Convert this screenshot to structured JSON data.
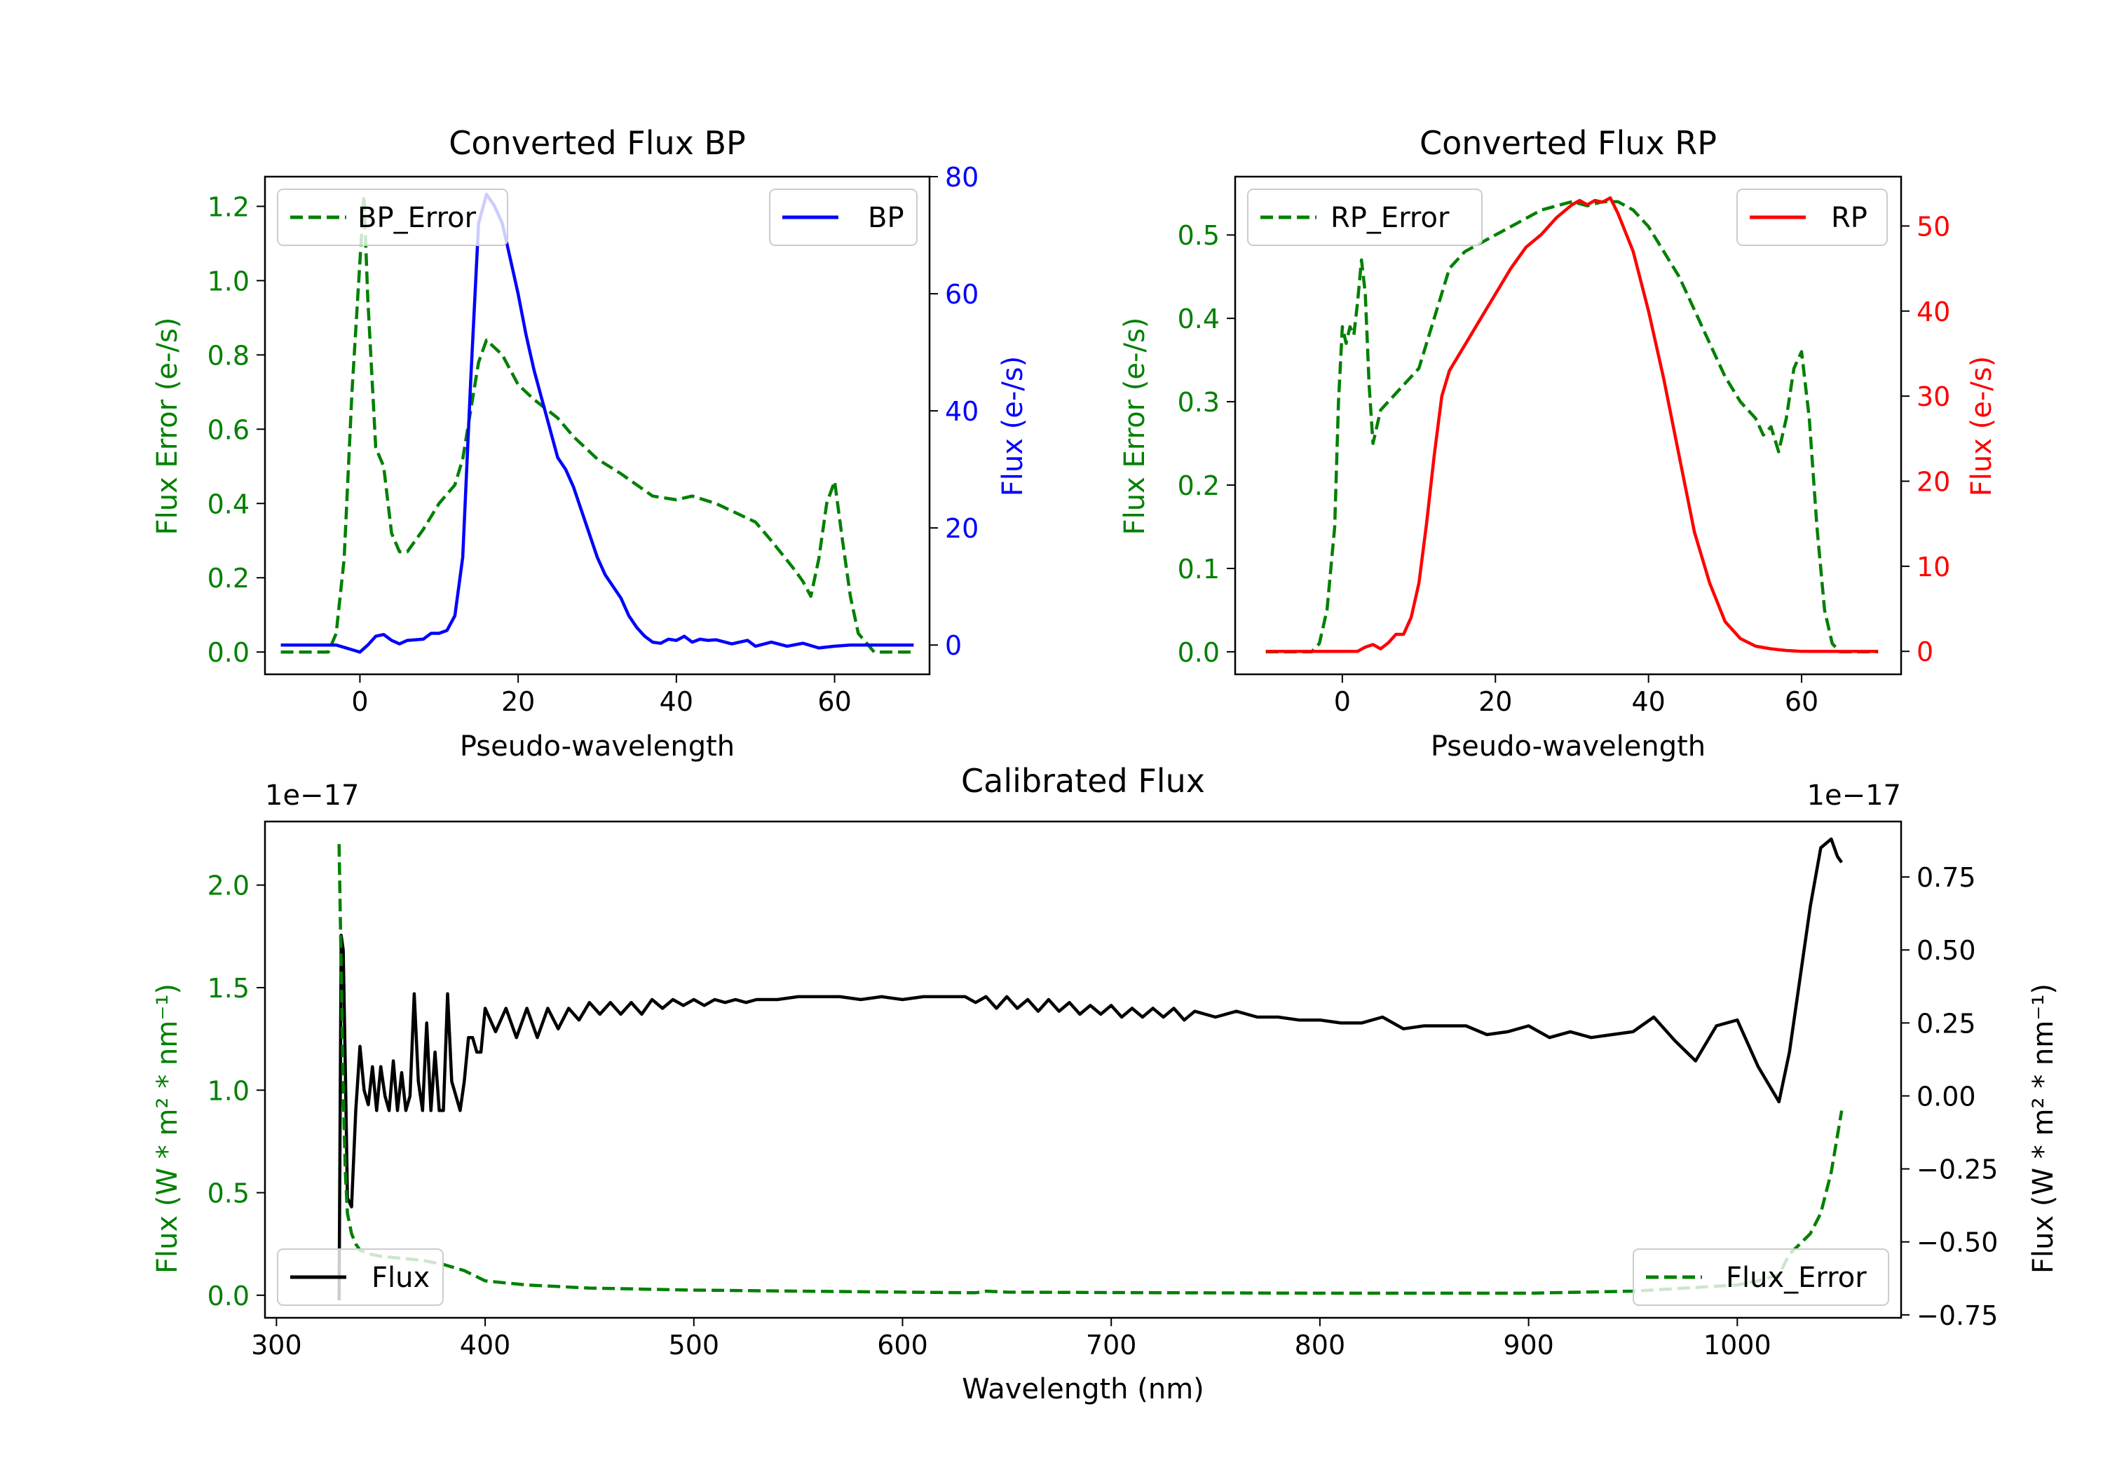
{
  "chart_data": [
    {
      "id": "bp",
      "type": "line",
      "title": "Converted Flux BP",
      "xlabel": "Pseudo-wavelength",
      "ylabel": "Flux Error (e-/s)",
      "ylabel_right": "Flux (e-/s)",
      "xlim": [
        -12,
        72
      ],
      "ylim": [
        -0.06,
        1.28
      ],
      "ylim_right": [
        -5,
        80
      ],
      "xticks": [
        0,
        20,
        40,
        60
      ],
      "yticks": [
        0.0,
        0.2,
        0.4,
        0.6,
        0.8,
        1.0,
        1.2
      ],
      "yticks_right": [
        0,
        20,
        40,
        60,
        80
      ],
      "grid": false,
      "legend_left": "upper-left",
      "legend_right": "upper-right",
      "colors": {
        "error": "#008000",
        "flux": "#0000ff"
      },
      "series": [
        {
          "name": "BP_Error",
          "axis": "left",
          "style": "dashed",
          "color": "#008000",
          "x": [
            -10,
            -4,
            -3,
            -2,
            -1,
            0,
            0.5,
            1,
            2,
            3,
            4,
            5,
            6,
            8,
            10,
            12,
            13,
            14,
            15,
            16,
            18,
            20,
            22,
            25,
            27,
            30,
            33,
            35,
            37,
            40,
            42,
            45,
            47,
            50,
            52,
            55,
            56,
            57,
            58,
            59,
            60,
            61,
            62,
            63,
            65,
            70
          ],
          "y": [
            0.0,
            0.0,
            0.05,
            0.25,
            0.7,
            1.05,
            1.23,
            0.95,
            0.55,
            0.5,
            0.32,
            0.27,
            0.27,
            0.33,
            0.4,
            0.45,
            0.52,
            0.65,
            0.78,
            0.84,
            0.8,
            0.72,
            0.68,
            0.63,
            0.58,
            0.52,
            0.48,
            0.45,
            0.42,
            0.41,
            0.42,
            0.4,
            0.38,
            0.35,
            0.3,
            0.22,
            0.19,
            0.15,
            0.25,
            0.4,
            0.46,
            0.3,
            0.15,
            0.05,
            0.0,
            0.0
          ]
        },
        {
          "name": "BP",
          "axis": "right",
          "style": "solid",
          "color": "#0000ff",
          "x": [
            -10,
            -3,
            -1,
            0,
            1,
            2,
            3,
            4,
            5,
            6,
            8,
            9,
            10,
            11,
            12,
            13,
            14,
            15,
            16,
            17,
            18,
            19,
            20,
            21,
            22,
            23,
            24,
            25,
            26,
            27,
            28,
            29,
            30,
            31,
            32,
            33,
            34,
            35,
            36,
            37,
            38,
            39,
            40,
            41,
            42,
            43,
            44,
            45,
            47,
            49,
            50,
            52,
            54,
            56,
            58,
            60,
            62,
            65,
            70
          ],
          "y": [
            0,
            0,
            -0.8,
            -1.2,
            0,
            1.5,
            1.8,
            0.8,
            0.2,
            0.8,
            1,
            2,
            2,
            2.5,
            5,
            15,
            45,
            72,
            77,
            75,
            72,
            66,
            60,
            53,
            47,
            42,
            37,
            32,
            30,
            27,
            23,
            19,
            15,
            12,
            10,
            8,
            5,
            3,
            1.5,
            0.5,
            0.3,
            1,
            0.8,
            1.5,
            0.5,
            1,
            0.8,
            0.9,
            0.2,
            0.8,
            -0.2,
            0.5,
            -0.2,
            0.3,
            -0.5,
            -0.2,
            0,
            0,
            0
          ]
        }
      ]
    },
    {
      "id": "rp",
      "type": "line",
      "title": "Converted Flux RP",
      "xlabel": "Pseudo-wavelength",
      "ylabel": "Flux Error (e-/s)",
      "ylabel_right": "Flux (e-/s)",
      "xlim": [
        -14,
        73
      ],
      "ylim": [
        -0.027,
        0.57
      ],
      "ylim_right": [
        -2.7,
        55.8
      ],
      "xticks": [
        0,
        20,
        40,
        60
      ],
      "yticks": [
        0.0,
        0.1,
        0.2,
        0.3,
        0.4,
        0.5
      ],
      "yticks_right": [
        0,
        10,
        20,
        30,
        40,
        50
      ],
      "grid": false,
      "legend_left": "upper-left",
      "legend_right": "upper-right",
      "colors": {
        "error": "#008000",
        "flux": "#ff0000"
      },
      "series": [
        {
          "name": "RP_Error",
          "axis": "left",
          "style": "dashed",
          "color": "#008000",
          "x": [
            -10,
            -4,
            -3,
            -2,
            -1,
            -0.5,
            0,
            0.5,
            1,
            1.5,
            2,
            2.5,
            3,
            3.5,
            4,
            5,
            6,
            8,
            10,
            12,
            14,
            16,
            18,
            20,
            22,
            24,
            26,
            28,
            30,
            32,
            34,
            36,
            38,
            40,
            42,
            44,
            46,
            48,
            50,
            52,
            54,
            55,
            56,
            57,
            58,
            59,
            60,
            61,
            62,
            63,
            64,
            65,
            68,
            70
          ],
          "y": [
            0.0,
            0.0,
            0.01,
            0.05,
            0.15,
            0.3,
            0.39,
            0.37,
            0.39,
            0.38,
            0.42,
            0.47,
            0.43,
            0.32,
            0.25,
            0.29,
            0.3,
            0.32,
            0.34,
            0.4,
            0.46,
            0.48,
            0.49,
            0.5,
            0.51,
            0.52,
            0.53,
            0.535,
            0.54,
            0.535,
            0.54,
            0.54,
            0.53,
            0.51,
            0.48,
            0.45,
            0.41,
            0.37,
            0.33,
            0.3,
            0.28,
            0.26,
            0.27,
            0.24,
            0.28,
            0.34,
            0.36,
            0.28,
            0.15,
            0.05,
            0.01,
            0.0,
            0.0,
            0.0
          ]
        },
        {
          "name": "RP",
          "axis": "right",
          "style": "solid",
          "color": "#ff0000",
          "x": [
            -10,
            -2,
            0,
            2,
            3,
            4,
            5,
            6,
            7,
            8,
            9,
            10,
            11,
            12,
            13,
            14,
            16,
            18,
            20,
            22,
            24,
            26,
            28,
            30,
            31,
            32,
            33,
            34,
            35,
            36,
            38,
            40,
            42,
            44,
            46,
            48,
            50,
            52,
            54,
            56,
            58,
            60,
            62,
            65,
            70
          ],
          "y": [
            0,
            0,
            0,
            0,
            0.5,
            0.8,
            0.3,
            1,
            2,
            2,
            4,
            8,
            15,
            23,
            30,
            33,
            36,
            39,
            42,
            45,
            47.5,
            49,
            51,
            52.5,
            53,
            52.5,
            53,
            52.8,
            53.3,
            51.5,
            47,
            40,
            32,
            23,
            14,
            8,
            3.5,
            1.5,
            0.6,
            0.3,
            0.1,
            0,
            0,
            0,
            0
          ]
        }
      ]
    },
    {
      "id": "cal",
      "type": "line",
      "title": "Calibrated Flux",
      "xlabel": "Wavelength (nm)",
      "ylabel": "Flux (W * m² * nm⁻¹)",
      "ylabel_right": "Flux (W * m² * nm⁻¹)",
      "offset_left": "1e−17",
      "offset_right": "1e−17",
      "xlim": [
        294.5,
        1078.5
      ],
      "ylim": [
        -0.11,
        2.31
      ],
      "ylim_right": [
        -0.76,
        0.94
      ],
      "xticks": [
        300,
        400,
        500,
        600,
        700,
        800,
        900,
        1000
      ],
      "yticks": [
        0.0,
        0.5,
        1.0,
        1.5,
        2.0
      ],
      "yticks_right": [
        -0.75,
        -0.5,
        -0.25,
        0.0,
        0.25,
        0.5,
        0.75
      ],
      "ytick_labels_right": [
        "−0.75",
        "−0.50",
        "−0.25",
        "0.00",
        "0.25",
        "0.50",
        "0.75"
      ],
      "grid": false,
      "legend_left": "lower-left",
      "legend_right": "lower-right",
      "colors": {
        "error": "#008000",
        "flux": "#000000"
      },
      "series": [
        {
          "name": "Flux",
          "axis": "right",
          "style": "solid",
          "color": "#000000",
          "x": [
            330,
            331,
            332,
            333,
            334,
            336,
            338,
            340,
            342,
            344,
            346,
            348,
            350,
            352,
            354,
            356,
            358,
            360,
            362,
            364,
            366,
            368,
            370,
            372,
            374,
            376,
            378,
            380,
            382,
            384,
            386,
            388,
            390,
            392,
            394,
            396,
            398,
            400,
            405,
            410,
            415,
            420,
            425,
            430,
            435,
            440,
            445,
            450,
            455,
            460,
            465,
            470,
            475,
            480,
            485,
            490,
            495,
            500,
            505,
            510,
            515,
            520,
            525,
            530,
            540,
            550,
            560,
            570,
            580,
            590,
            600,
            610,
            620,
            630,
            635,
            640,
            645,
            650,
            655,
            660,
            665,
            670,
            675,
            680,
            685,
            690,
            695,
            700,
            705,
            710,
            715,
            720,
            725,
            730,
            735,
            740,
            750,
            760,
            770,
            780,
            790,
            800,
            810,
            820,
            830,
            840,
            850,
            860,
            870,
            880,
            890,
            900,
            910,
            920,
            930,
            940,
            950,
            960,
            970,
            980,
            990,
            1000,
            1010,
            1020,
            1025,
            1030,
            1035,
            1040,
            1045,
            1048,
            1050
          ],
          "y": [
            -0.7,
            0.55,
            0.5,
            0.1,
            -0.35,
            -0.38,
            -0.05,
            0.17,
            0.02,
            -0.03,
            0.1,
            -0.05,
            0.1,
            0.0,
            -0.05,
            0.12,
            -0.05,
            0.08,
            -0.05,
            0.0,
            0.35,
            0.05,
            -0.05,
            0.25,
            -0.05,
            0.15,
            -0.05,
            -0.05,
            0.35,
            0.05,
            0.0,
            -0.05,
            0.05,
            0.2,
            0.2,
            0.15,
            0.15,
            0.3,
            0.22,
            0.3,
            0.2,
            0.3,
            0.2,
            0.3,
            0.23,
            0.3,
            0.26,
            0.32,
            0.28,
            0.32,
            0.28,
            0.32,
            0.28,
            0.33,
            0.3,
            0.33,
            0.31,
            0.33,
            0.31,
            0.33,
            0.32,
            0.33,
            0.32,
            0.33,
            0.33,
            0.34,
            0.34,
            0.34,
            0.33,
            0.34,
            0.33,
            0.34,
            0.34,
            0.34,
            0.32,
            0.34,
            0.3,
            0.34,
            0.3,
            0.33,
            0.29,
            0.33,
            0.29,
            0.32,
            0.28,
            0.31,
            0.28,
            0.31,
            0.27,
            0.3,
            0.27,
            0.3,
            0.27,
            0.3,
            0.26,
            0.29,
            0.27,
            0.29,
            0.27,
            0.27,
            0.26,
            0.26,
            0.25,
            0.25,
            0.27,
            0.23,
            0.24,
            0.24,
            0.24,
            0.21,
            0.22,
            0.24,
            0.2,
            0.22,
            0.2,
            0.21,
            0.22,
            0.27,
            0.19,
            0.12,
            0.24,
            0.26,
            0.1,
            -0.02,
            0.15,
            0.4,
            0.65,
            0.85,
            0.88,
            0.82,
            0.8
          ]
        },
        {
          "name": "Flux_Error",
          "axis": "left",
          "style": "dashed",
          "color": "#008000",
          "x": [
            330,
            331,
            332,
            333,
            334,
            336,
            338,
            340,
            345,
            350,
            360,
            370,
            380,
            390,
            400,
            420,
            450,
            500,
            550,
            600,
            635,
            640,
            650,
            700,
            800,
            900,
            950,
            1000,
            1010,
            1020,
            1025,
            1030,
            1035,
            1040,
            1045,
            1050
          ],
          "y": [
            2.2,
            1.6,
            1.0,
            0.6,
            0.4,
            0.3,
            0.25,
            0.22,
            0.2,
            0.19,
            0.18,
            0.17,
            0.15,
            0.12,
            0.07,
            0.05,
            0.035,
            0.025,
            0.02,
            0.015,
            0.012,
            0.02,
            0.015,
            0.013,
            0.01,
            0.01,
            0.02,
            0.05,
            0.07,
            0.1,
            0.2,
            0.25,
            0.3,
            0.4,
            0.6,
            0.9
          ]
        }
      ]
    }
  ]
}
